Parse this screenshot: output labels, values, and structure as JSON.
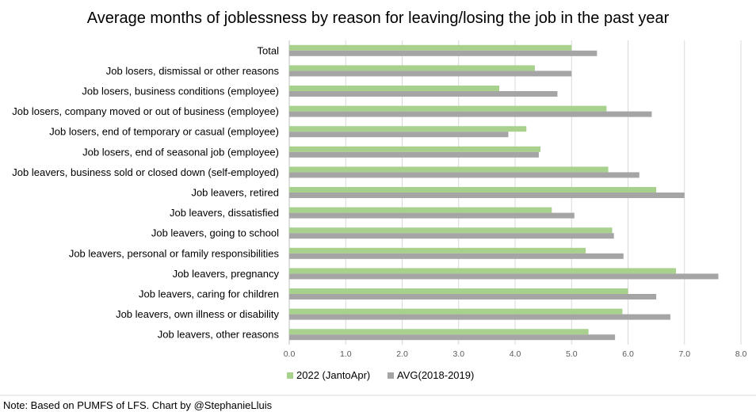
{
  "chart_data": {
    "type": "bar",
    "orientation": "horizontal",
    "title": "Average months of joblessness by reason for leaving/losing the job in the past year",
    "categories": [
      "Total",
      "Job losers, dismissal or other reasons",
      "Job losers, business conditions (employee)",
      "Job losers, company moved or out of business (employee)",
      "Job losers, end of temporary or casual (employee)",
      "Job losers, end of seasonal job (employee)",
      "Job leavers, business sold or closed down (self-employed)",
      "Job leavers, retired",
      "Job leavers, dissatisfied",
      "Job leavers, going to school",
      "Job leavers, personal or family responsibilities",
      "Job leavers, pregnancy",
      "Job leavers, caring for children",
      "Job leavers, own illness or disability",
      "Job leavers, other reasons"
    ],
    "series": [
      {
        "name": "2022 (JantoApr)",
        "color": "#a9d18e",
        "values": [
          5.0,
          4.35,
          3.72,
          5.62,
          4.2,
          4.45,
          5.65,
          6.5,
          4.65,
          5.72,
          5.25,
          6.85,
          6.0,
          5.9,
          5.3
        ]
      },
      {
        "name": "AVG(2018-2019)",
        "color": "#a5a5a5",
        "values": [
          5.45,
          5.0,
          4.75,
          6.42,
          3.88,
          4.42,
          6.2,
          7.0,
          5.05,
          5.75,
          5.92,
          7.6,
          6.5,
          6.75,
          5.77
        ]
      }
    ],
    "xlim": [
      0,
      8
    ],
    "xticks": [
      "0.0",
      "1.0",
      "2.0",
      "3.0",
      "4.0",
      "5.0",
      "6.0",
      "7.0",
      "8.0"
    ],
    "grid": true,
    "legend_position": "bottom",
    "note": "Note: Based on PUMFS of LFS. Chart by @StephanieLluis"
  }
}
